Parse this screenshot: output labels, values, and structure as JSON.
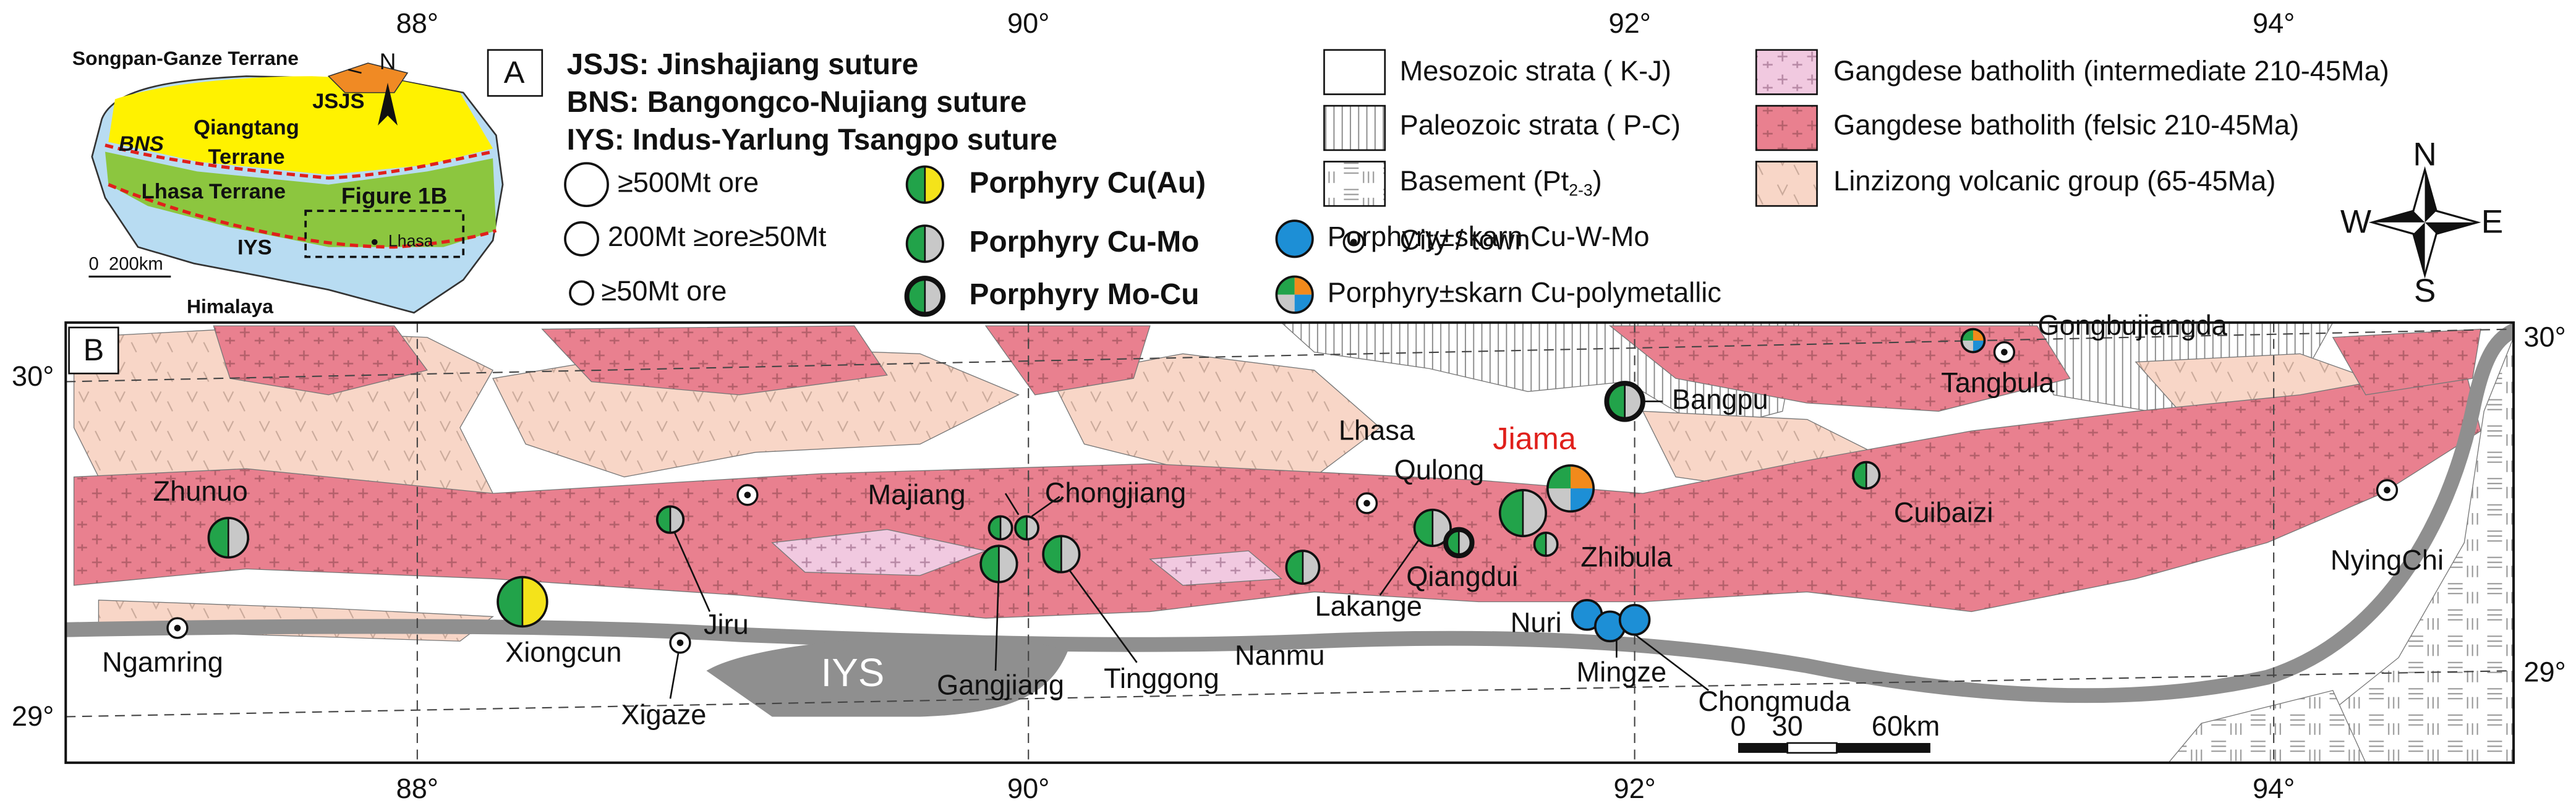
{
  "axes": {
    "top": [
      "88°",
      "90°",
      "92°",
      "94°"
    ],
    "bottom": [
      "88°",
      "90°",
      "92°",
      "94°"
    ],
    "left": [
      "30°",
      "29°"
    ],
    "right": [
      "30°",
      "29°"
    ]
  },
  "panels": [
    "A",
    "B"
  ],
  "inset": {
    "songpan": "Songpan-Ganze Terrane",
    "jsjs": "JSJS",
    "qiangtang": [
      "Qiangtang",
      "Terrane"
    ],
    "bns": "BNS",
    "lhasa_terrane": "Lhasa Terrane",
    "figure": "Figure 1B",
    "lhasa": "Lhasa",
    "iys": "IYS",
    "himalaya": "Himalaya",
    "scale": "0  200km",
    "north": "N"
  },
  "legend": {
    "sutures": [
      "JSJS: Jinshajiang suture",
      "BNS: Bangongco-Nujiang suture",
      "IYS: Indus-Yarlung Tsangpo suture"
    ],
    "ore_sizes": [
      "≥500Mt ore",
      "200Mt ≥ore≥50Mt",
      "≥50Mt ore"
    ],
    "deposits": [
      "Porphyry Cu(Au)",
      "Porphyry Cu-Mo",
      "Porphyry Mo-Cu",
      "Porphyry±skarn Cu-W-Mo",
      "Porphyry±skarn Cu-polymetallic"
    ],
    "strata": [
      "Mesozoic strata ( K-J)",
      "Paleozoic strata ( P-C)"
    ],
    "basement": [
      "Basement (Pt",
      "2-3",
      ")"
    ],
    "batholith": [
      "Gangdese batholith (intermediate 210-45Ma)",
      "Gangdese batholith (felsic 210-45Ma)"
    ],
    "volcanic": "Linzizong volcanic group (65-45Ma)",
    "city": "City / town"
  },
  "compass": [
    "N",
    "S",
    "W",
    "E"
  ],
  "places": [
    "Zhunuo",
    "Xiongcun",
    "Jiru",
    "Xigaze",
    "Ngamring",
    "Majiang",
    "Chongjiang",
    "Gangjiang",
    "Tinggong",
    "Nanmu",
    "Lakange",
    "Qiangdui",
    "Lhasa",
    "Qulong",
    "Jiama",
    "Zhibula",
    "Nuri",
    "Mingze",
    "Chongmuda",
    "Bangpu",
    "Tangbula",
    "Gongbujiangda",
    "Cuibaizi",
    "NyingChi"
  ],
  "iys": "IYS",
  "scale": [
    "0",
    "30",
    "60km"
  ]
}
